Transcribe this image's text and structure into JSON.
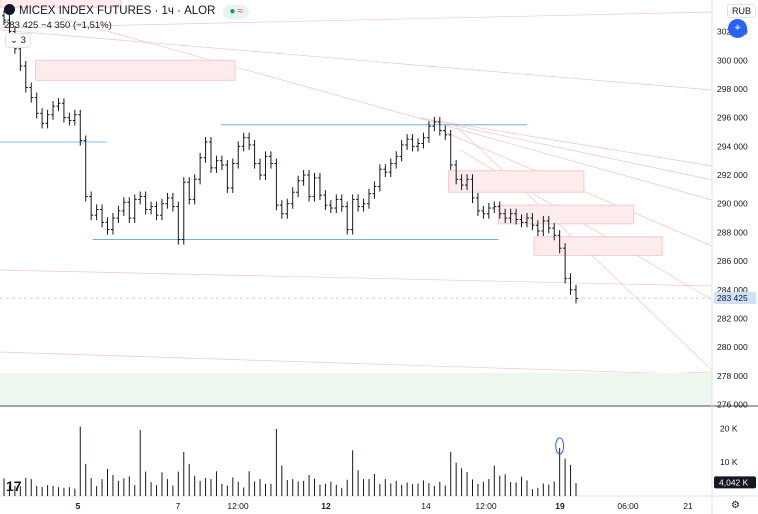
{
  "header": {
    "symbol": "MICEX INDEX FUTURES · 1ч · ALOR",
    "last": "283 425",
    "change": "−4 350 (−1,51%)",
    "collapse": "3",
    "currency": "RUB",
    "badge_dot": "●",
    "badge_wave": "≈"
  },
  "icons": {
    "logo": "tradingview-logo-icon",
    "settings": "gear-icon",
    "fab": "crosshair-icon"
  },
  "colors": {
    "up": "#131722",
    "accent": "#2962ff",
    "zone": "#f6c9cc",
    "level": "#5aa7d6"
  },
  "chart_data": {
    "type": "candlestick",
    "y_ticks": [
      302000,
      300000,
      298000,
      296000,
      294000,
      292000,
      290000,
      288000,
      286000,
      284000,
      282000,
      280000,
      278000,
      276000
    ],
    "y_tick_labels": [
      "302 000",
      "300 000",
      "298 000",
      "296 000",
      "294 000",
      "292 000",
      "290 000",
      "288 000",
      "286 000",
      "284 000",
      "282 000",
      "280 000",
      "278 000",
      "276 000"
    ],
    "ylim": [
      275900,
      304200
    ],
    "price_label": "283 425",
    "last_price": 283425,
    "x_labels": [
      "5",
      "7",
      "12:00",
      "12",
      "14",
      "12:00",
      "19",
      "06:00",
      "21"
    ],
    "x_label_bold": [
      "5",
      "12",
      "19"
    ],
    "volume_ticks": [
      "20 K",
      "10 K"
    ],
    "volume_label": "4,042 K",
    "volume_ylim": [
      0,
      26000
    ],
    "supply_zones": [
      {
        "from": 0,
        "to": 0.17,
        "lo": 303700,
        "hi": 305200
      },
      {
        "from": 0.05,
        "to": 0.33,
        "lo": 298600,
        "hi": 300000
      },
      {
        "from": 0.63,
        "to": 0.82,
        "lo": 290800,
        "hi": 292300
      },
      {
        "from": 0.7,
        "to": 0.89,
        "lo": 288600,
        "hi": 289900
      },
      {
        "from": 0.75,
        "to": 0.93,
        "lo": 286400,
        "hi": 287700
      }
    ],
    "levels": [
      {
        "from": 0,
        "to": 0.15,
        "y": 294300
      },
      {
        "from": 0.13,
        "to": 0.7,
        "y": 287500
      },
      {
        "from": 0.31,
        "to": 0.74,
        "y": 295500
      }
    ],
    "close": [
      302800,
      302000,
      300800,
      299600,
      298100,
      297400,
      296300,
      295600,
      296200,
      296800,
      297000,
      296000,
      295800,
      296200,
      294400,
      290500,
      289200,
      289600,
      288700,
      288200,
      289000,
      289500,
      290100,
      289000,
      290300,
      290500,
      289600,
      289800,
      289200,
      290000,
      290400,
      289800,
      287500,
      291500,
      290300,
      291700,
      293200,
      294300,
      292500,
      293000,
      292700,
      291100,
      292800,
      294000,
      294600,
      294100,
      292800,
      292000,
      293300,
      292800,
      289900,
      289300,
      290000,
      290800,
      291600,
      292000,
      290500,
      291800,
      290600,
      289900,
      289700,
      290300,
      289800,
      288200,
      290300,
      289800,
      290000,
      290700,
      291200,
      292400,
      292200,
      292800,
      293300,
      294100,
      294500,
      294000,
      294200,
      294600,
      295400,
      295700,
      295100,
      294800,
      292700,
      291700,
      291300,
      291700,
      290400,
      289500,
      289300,
      289700,
      289800,
      289300,
      289000,
      289300,
      288900,
      288700,
      289000,
      288500,
      288100,
      288800,
      288300,
      287800,
      286900,
      284800,
      284000,
      283400
    ],
    "volume": [
      5200,
      3100,
      3000,
      2900,
      5400,
      5000,
      3000,
      2700,
      3200,
      3000,
      2600,
      2400,
      2600,
      2200,
      20500,
      9500,
      5300,
      2900,
      5000,
      8000,
      6200,
      4500,
      5200,
      5800,
      3200,
      19500,
      7200,
      4100,
      3200,
      7000,
      5000,
      3100,
      7200,
      13000,
      9500,
      6000,
      4500,
      5300,
      5000,
      7300,
      3600,
      3100,
      5500,
      4200,
      2500,
      7300,
      4300,
      5000,
      3600,
      3600,
      19800,
      9000,
      4700,
      5000,
      4300,
      4500,
      6200,
      5100,
      3300,
      3600,
      4200,
      3300,
      2300,
      4800,
      13500,
      7600,
      5000,
      5000,
      6500,
      3500,
      5000,
      3700,
      4500,
      3300,
      4000,
      3500,
      3700,
      4600,
      3800,
      3000,
      4200,
      3100,
      13000,
      9800,
      8200,
      7100,
      4900,
      3600,
      4200,
      5000,
      9000,
      6000,
      6400,
      4100,
      4000,
      5700,
      4600,
      2000,
      2400,
      3700,
      3400,
      4300,
      14200,
      11000,
      9200,
      3800
    ]
  }
}
